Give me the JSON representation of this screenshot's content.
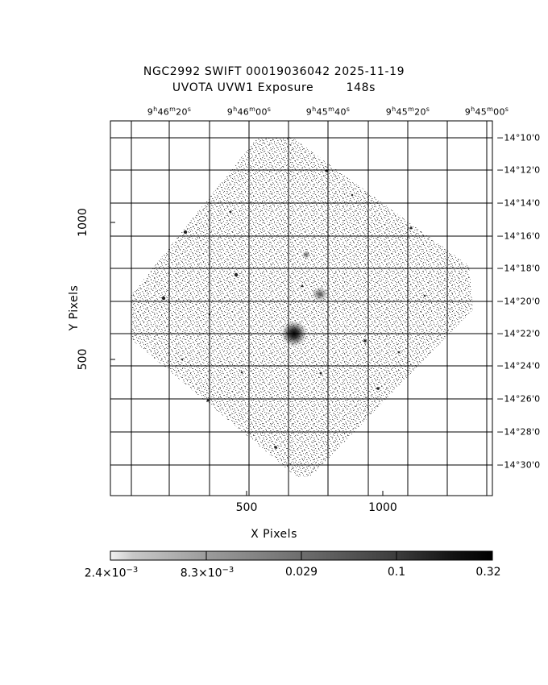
{
  "title": {
    "line1": "NGC2992 SWIFT 00019036042 2025-11-19",
    "line2": "UVOTA UVW1 Exposure        148s"
  },
  "ra_ticks": [
    {
      "h": "9",
      "m": "46",
      "s": "20"
    },
    {
      "h": "9",
      "m": "46",
      "s": "00"
    },
    {
      "h": "9",
      "m": "45",
      "s": "40"
    },
    {
      "h": "9",
      "m": "45",
      "s": "20"
    },
    {
      "h": "9",
      "m": "45",
      "s": "00"
    }
  ],
  "dec_ticks": [
    "−14°10'0",
    "−14°12'0",
    "−14°14'0",
    "−14°16'0",
    "−14°18'0",
    "−14°20'0",
    "−14°22'0",
    "−14°24'0",
    "−14°26'0",
    "−14°28'0",
    "−14°30'0"
  ],
  "x_axis": {
    "label": "X Pixels",
    "ticks": [
      "500",
      "1000"
    ]
  },
  "y_axis": {
    "label": "Y Pixels",
    "ticks": [
      "1000",
      "500"
    ]
  },
  "colorbar": {
    "labels": [
      {
        "mant": "2.4×10",
        "exp": "−3"
      },
      {
        "mant": "8.3×10",
        "exp": "−3"
      },
      {
        "mant": "0.029",
        "exp": ""
      },
      {
        "mant": "0.1",
        "exp": ""
      },
      {
        "mant": "0.32",
        "exp": ""
      }
    ]
  },
  "colors": {
    "background": "#ffffff",
    "noise": "#777777",
    "ink": "#000000"
  }
}
